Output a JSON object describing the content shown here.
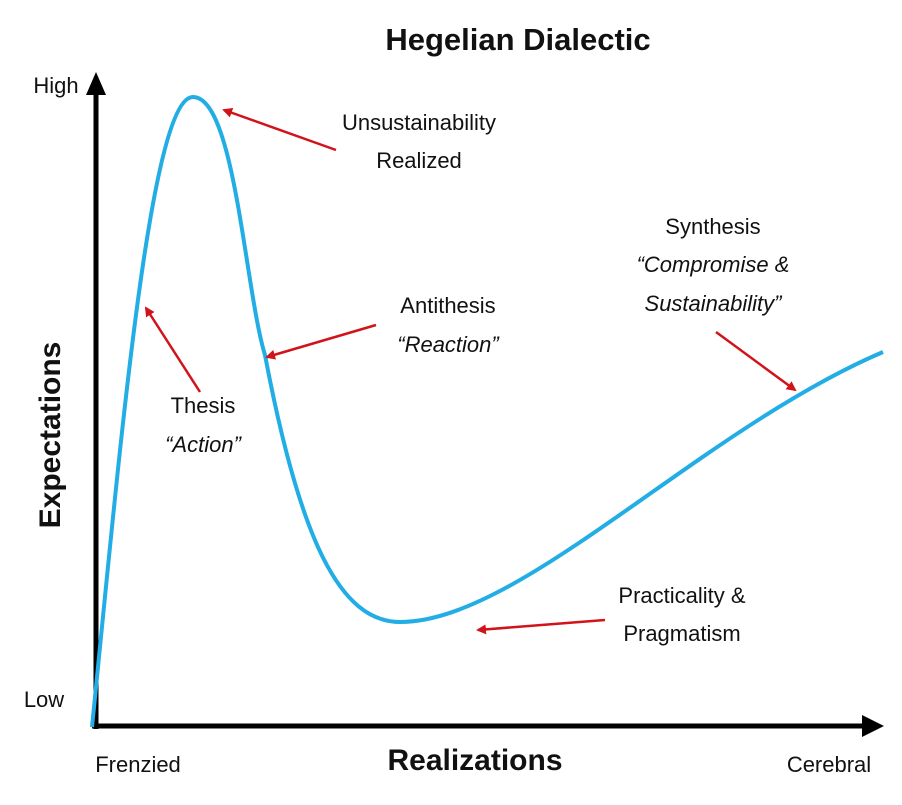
{
  "title": "Hegelian Dialectic",
  "y_axis": {
    "label": "Expectations",
    "high": "High",
    "low": "Low"
  },
  "x_axis": {
    "label": "Realizations",
    "start": "Frenzied",
    "end": "Cerebral"
  },
  "annotations": [
    {
      "lines": [
        "Unsustainability",
        "Realized"
      ]
    },
    {
      "lines": [
        "Antithesis",
        "“Reaction”"
      ]
    },
    {
      "lines": [
        "Thesis",
        "“Action”"
      ]
    },
    {
      "lines": [
        "Synthesis",
        "“Compromise &",
        "Sustainability”"
      ]
    },
    {
      "lines": [
        "Practicality &",
        "Pragmatism"
      ]
    }
  ]
}
